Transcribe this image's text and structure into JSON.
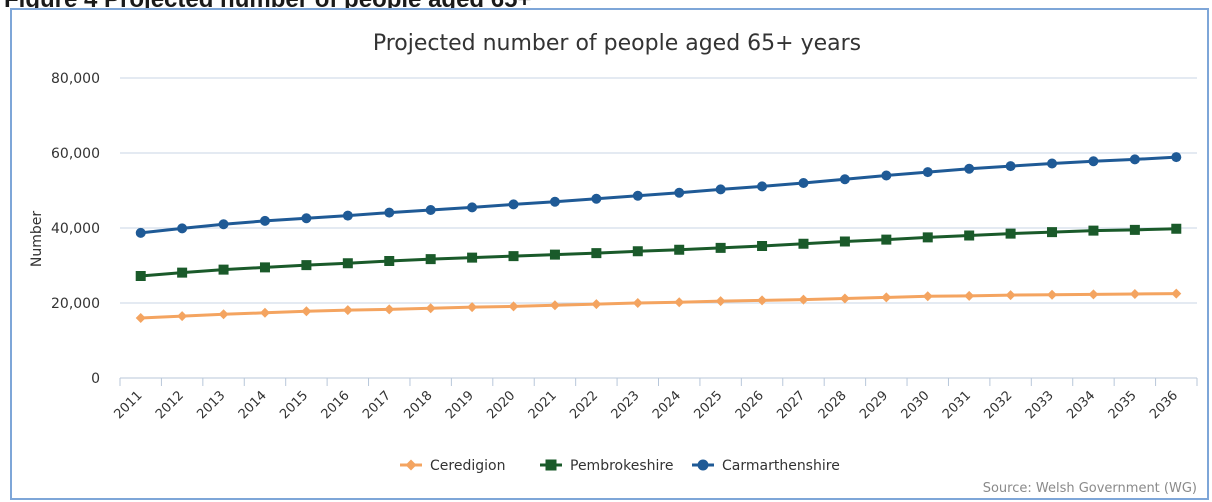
{
  "figure_heading": "Figure 4 Projected number of people aged 65+",
  "chart_data": {
    "type": "line",
    "title": "Projected number of people aged 65+ years",
    "xlabel": "",
    "ylabel": "Number",
    "x": [
      "2011",
      "2012",
      "2013",
      "2014",
      "2015",
      "2016",
      "2017",
      "2018",
      "2019",
      "2020",
      "2021",
      "2022",
      "2023",
      "2024",
      "2025",
      "2026",
      "2027",
      "2028",
      "2029",
      "2030",
      "2031",
      "2032",
      "2033",
      "2034",
      "2035",
      "2036"
    ],
    "yticks": [
      0,
      20000,
      40000,
      60000,
      80000
    ],
    "ytick_labels": [
      "0",
      "20,000",
      "40,000",
      "60,000",
      "80,000"
    ],
    "ylim": [
      0,
      80000
    ],
    "grid": "horizontal",
    "legend_position": "bottom",
    "series": [
      {
        "name": "Ceredigion",
        "marker": "diamond",
        "color": "#f4a460",
        "values": [
          16000,
          16500,
          17000,
          17400,
          17800,
          18100,
          18300,
          18600,
          18900,
          19100,
          19400,
          19700,
          20000,
          20200,
          20500,
          20700,
          20900,
          21200,
          21500,
          21800,
          21900,
          22100,
          22200,
          22300,
          22400,
          22500
        ]
      },
      {
        "name": "Pembrokeshire",
        "marker": "square",
        "color": "#1a5a2a",
        "values": [
          27200,
          28100,
          28900,
          29500,
          30100,
          30600,
          31200,
          31700,
          32100,
          32500,
          32900,
          33300,
          33800,
          34200,
          34700,
          35200,
          35800,
          36400,
          36900,
          37500,
          38000,
          38500,
          38900,
          39300,
          39500,
          39800
        ]
      },
      {
        "name": "Carmarthenshire",
        "marker": "circle",
        "color": "#1f5a96",
        "values": [
          38700,
          39900,
          41000,
          41900,
          42600,
          43300,
          44100,
          44800,
          45500,
          46300,
          47000,
          47800,
          48600,
          49400,
          50300,
          51100,
          52000,
          53000,
          54000,
          54900,
          55800,
          56500,
          57200,
          57800,
          58300,
          58900
        ]
      }
    ],
    "source": "Source: Welsh Government (WG)"
  }
}
